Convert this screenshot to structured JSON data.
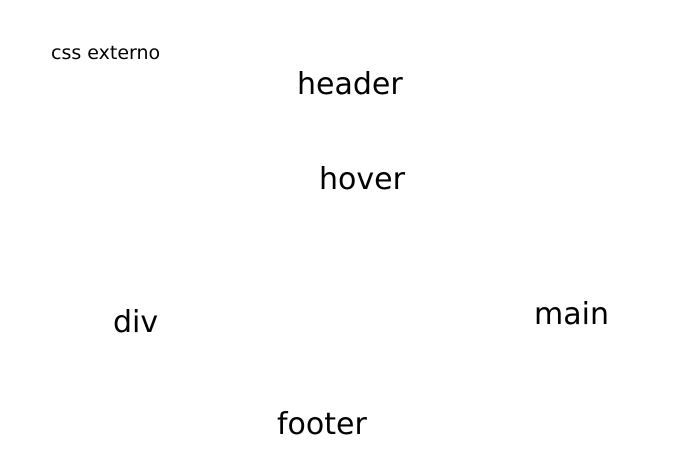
{
  "labels": {
    "css_externo": "css externo",
    "header": "header",
    "hover": "hover",
    "div": "div",
    "main": "main",
    "footer": "footer"
  }
}
